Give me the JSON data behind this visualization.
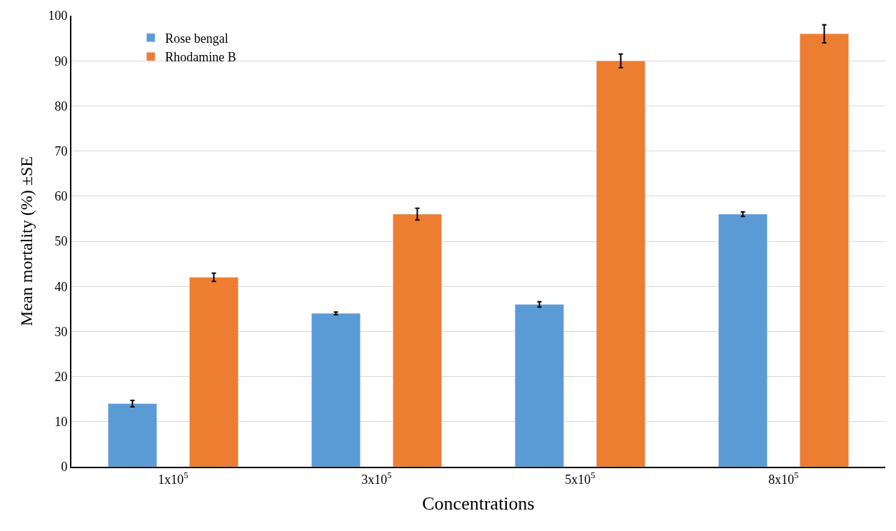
{
  "chart_data": {
    "type": "bar",
    "xlabel": "Concentrations",
    "ylabel": "Mean mortality (%) ±SE",
    "categories": [
      "1x10$^{5}$",
      "3x10$^{5}$",
      "5x10$^{5}$",
      "8x10$^{5}$"
    ],
    "series": [
      {
        "name": "Rose bengal",
        "color": "#5b9bd5",
        "values": [
          14,
          34,
          36,
          56
        ],
        "errors": [
          0.7,
          0.3,
          0.6,
          0.5
        ]
      },
      {
        "name": "Rhodamine B",
        "color": "#ed7d31",
        "values": [
          42,
          56,
          90,
          96
        ],
        "errors": [
          0.9,
          1.3,
          1.5,
          2
        ]
      }
    ],
    "ylim": [
      0,
      100
    ],
    "yticks": [
      0,
      10,
      20,
      30,
      40,
      50,
      60,
      70,
      80,
      90,
      100
    ],
    "grid": "y",
    "legend": "top left"
  }
}
